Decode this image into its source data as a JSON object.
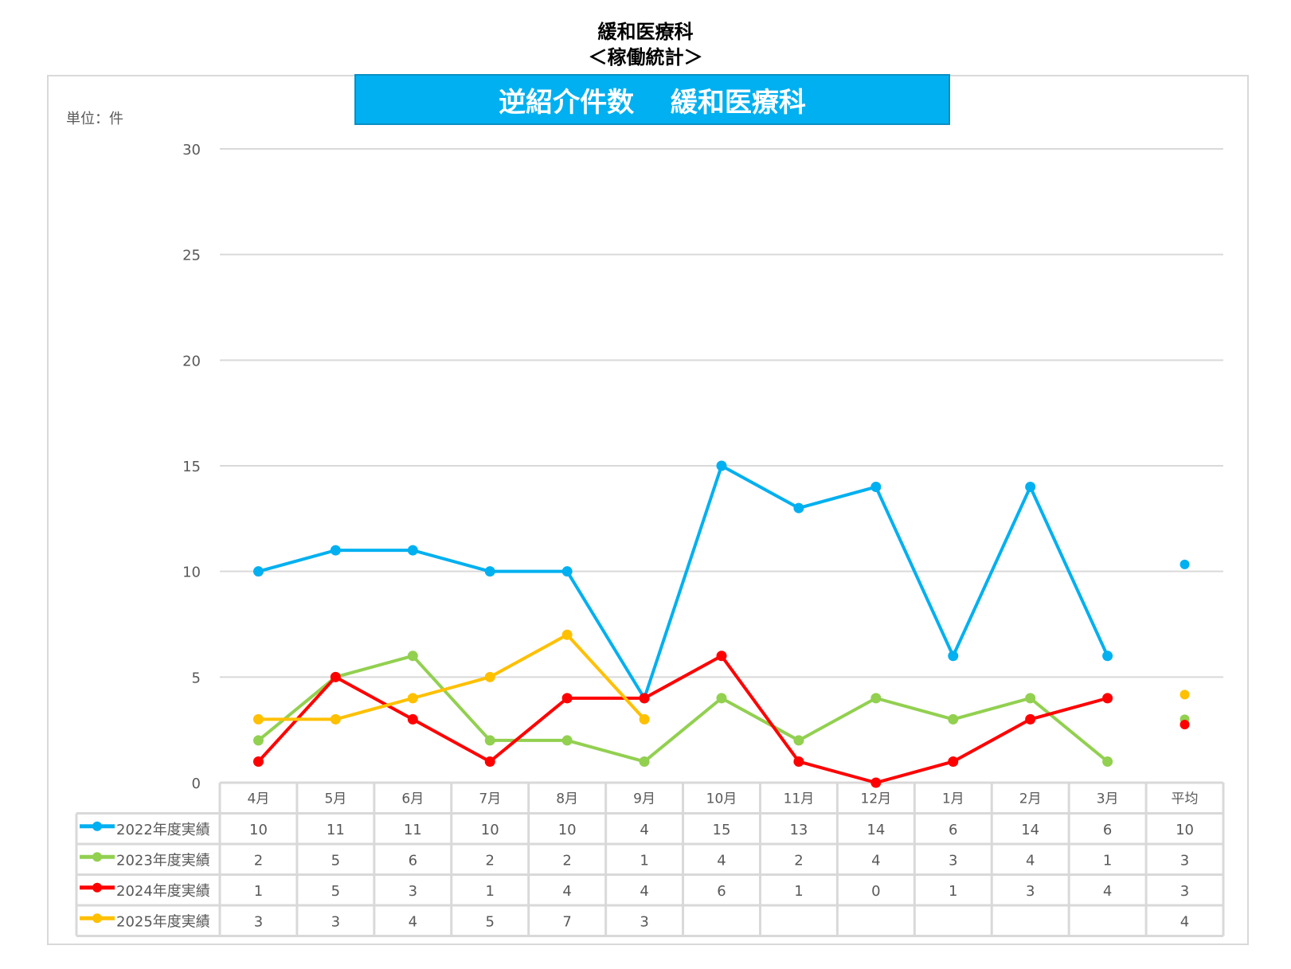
{
  "header": {
    "title": "緩和医療科",
    "subtitle": "＜稼働統計＞"
  },
  "chart_data": {
    "type": "line",
    "title": "逆紹介件数　 緩和医療科",
    "unit_label": "単位：件",
    "categories": [
      "4月",
      "5月",
      "6月",
      "7月",
      "8月",
      "9月",
      "10月",
      "11月",
      "12月",
      "1月",
      "2月",
      "3月"
    ],
    "average_label": "平均",
    "ylim": [
      0,
      30
    ],
    "yticks": [
      0,
      5,
      10,
      15,
      20,
      25,
      30
    ],
    "grid": true,
    "legend": "data-table",
    "series": [
      {
        "name": "2022年度実績",
        "color": "#00b0f0",
        "values": [
          10,
          11,
          11,
          10,
          10,
          4,
          15,
          13,
          14,
          6,
          14,
          6
        ],
        "average": 10.33,
        "average_label": "10"
      },
      {
        "name": "2023年度実績",
        "color": "#92d050",
        "values": [
          2,
          5,
          6,
          2,
          2,
          1,
          4,
          2,
          4,
          3,
          4,
          1
        ],
        "average": 3.0,
        "average_label": "3"
      },
      {
        "name": "2024年度実績",
        "color": "#ff0000",
        "values": [
          1,
          5,
          3,
          1,
          4,
          4,
          6,
          1,
          0,
          1,
          3,
          4
        ],
        "average": 2.75,
        "average_label": "3"
      },
      {
        "name": "2025年度実績",
        "color": "#ffc000",
        "values": [
          3,
          3,
          4,
          5,
          7,
          3,
          null,
          null,
          null,
          null,
          null,
          null
        ],
        "average": 4.17,
        "average_label": "4"
      }
    ]
  }
}
